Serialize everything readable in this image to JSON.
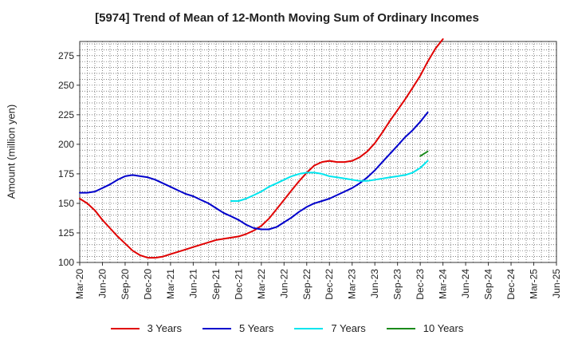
{
  "chart_data": {
    "type": "line",
    "title": "[5974]  Trend of Mean of 12-Month Moving Sum of Ordinary Incomes",
    "xlabel": "",
    "ylabel": "Amount (million yen)",
    "ylim": [
      100,
      287
    ],
    "yticks": [
      100,
      125,
      150,
      175,
      200,
      225,
      250,
      275
    ],
    "categories": [
      "Mar-20",
      "Jun-20",
      "Sep-20",
      "Dec-20",
      "Mar-21",
      "Jun-21",
      "Sep-21",
      "Dec-21",
      "Mar-22",
      "Jun-22",
      "Sep-22",
      "Dec-22",
      "Mar-23",
      "Jun-23",
      "Sep-23",
      "Dec-23",
      "Mar-24",
      "Jun-24",
      "Sep-24",
      "Dec-24",
      "Mar-25",
      "Jun-25"
    ],
    "grid": true,
    "legend_position": "bottom",
    "series": [
      {
        "name": "3 Years",
        "color": "#e00000",
        "points": [
          [
            0,
            154
          ],
          [
            0.33,
            150
          ],
          [
            0.67,
            144
          ],
          [
            1,
            136
          ],
          [
            1.33,
            129
          ],
          [
            1.67,
            122
          ],
          [
            2,
            116
          ],
          [
            2.33,
            110
          ],
          [
            2.67,
            106
          ],
          [
            3,
            104
          ],
          [
            3.33,
            104
          ],
          [
            3.67,
            105
          ],
          [
            4,
            107
          ],
          [
            4.33,
            109
          ],
          [
            4.67,
            111
          ],
          [
            5,
            113
          ],
          [
            5.33,
            115
          ],
          [
            5.67,
            117
          ],
          [
            6,
            119
          ],
          [
            6.33,
            120
          ],
          [
            6.67,
            121
          ],
          [
            7,
            122
          ],
          [
            7.33,
            124
          ],
          [
            7.67,
            127
          ],
          [
            8,
            131
          ],
          [
            8.33,
            137
          ],
          [
            8.67,
            145
          ],
          [
            9,
            153
          ],
          [
            9.33,
            161
          ],
          [
            9.67,
            169
          ],
          [
            10,
            176
          ],
          [
            10.33,
            182
          ],
          [
            10.67,
            185
          ],
          [
            11,
            186
          ],
          [
            11.33,
            185
          ],
          [
            11.67,
            185
          ],
          [
            12,
            186
          ],
          [
            12.33,
            189
          ],
          [
            12.67,
            194
          ],
          [
            13,
            201
          ],
          [
            13.33,
            210
          ],
          [
            13.67,
            220
          ],
          [
            14,
            229
          ],
          [
            14.33,
            238
          ],
          [
            14.67,
            248
          ],
          [
            15,
            258
          ],
          [
            15.33,
            270
          ],
          [
            15.67,
            281
          ],
          [
            16,
            289
          ]
        ]
      },
      {
        "name": "5 Years",
        "color": "#0000cc",
        "points": [
          [
            0,
            159
          ],
          [
            0.33,
            159
          ],
          [
            0.67,
            160
          ],
          [
            1,
            163
          ],
          [
            1.33,
            166
          ],
          [
            1.67,
            170
          ],
          [
            2,
            173
          ],
          [
            2.33,
            174
          ],
          [
            2.67,
            173
          ],
          [
            3,
            172
          ],
          [
            3.33,
            170
          ],
          [
            3.67,
            167
          ],
          [
            4,
            164
          ],
          [
            4.33,
            161
          ],
          [
            4.67,
            158
          ],
          [
            5,
            156
          ],
          [
            5.33,
            153
          ],
          [
            5.67,
            150
          ],
          [
            6,
            146
          ],
          [
            6.33,
            142
          ],
          [
            6.67,
            139
          ],
          [
            7,
            136
          ],
          [
            7.33,
            132
          ],
          [
            7.67,
            129
          ],
          [
            8,
            128
          ],
          [
            8.33,
            128
          ],
          [
            8.67,
            130
          ],
          [
            9,
            134
          ],
          [
            9.33,
            138
          ],
          [
            9.67,
            143
          ],
          [
            10,
            147
          ],
          [
            10.33,
            150
          ],
          [
            10.67,
            152
          ],
          [
            11,
            154
          ],
          [
            11.33,
            157
          ],
          [
            11.67,
            160
          ],
          [
            12,
            163
          ],
          [
            12.33,
            167
          ],
          [
            12.67,
            172
          ],
          [
            13,
            178
          ],
          [
            13.33,
            185
          ],
          [
            13.67,
            192
          ],
          [
            14,
            199
          ],
          [
            14.33,
            206
          ],
          [
            14.67,
            212
          ],
          [
            15,
            219
          ],
          [
            15.33,
            227
          ]
        ]
      },
      {
        "name": "7 Years",
        "color": "#00e5ee",
        "points": [
          [
            6.67,
            152
          ],
          [
            7,
            152
          ],
          [
            7.33,
            154
          ],
          [
            7.67,
            157
          ],
          [
            8,
            160
          ],
          [
            8.33,
            164
          ],
          [
            8.67,
            167
          ],
          [
            9,
            170
          ],
          [
            9.33,
            173
          ],
          [
            9.67,
            175
          ],
          [
            10,
            176
          ],
          [
            10.33,
            176
          ],
          [
            10.67,
            175
          ],
          [
            11,
            173
          ],
          [
            11.33,
            172
          ],
          [
            11.67,
            171
          ],
          [
            12,
            170
          ],
          [
            12.33,
            169
          ],
          [
            12.67,
            169
          ],
          [
            13,
            170
          ],
          [
            13.33,
            171
          ],
          [
            13.67,
            172
          ],
          [
            14,
            173
          ],
          [
            14.33,
            174
          ],
          [
            14.67,
            176
          ],
          [
            15,
            180
          ],
          [
            15.33,
            186
          ]
        ]
      },
      {
        "name": "10 Years",
        "color": "#1a8a1a",
        "points": [
          [
            15,
            190
          ],
          [
            15.33,
            194
          ]
        ]
      }
    ]
  }
}
